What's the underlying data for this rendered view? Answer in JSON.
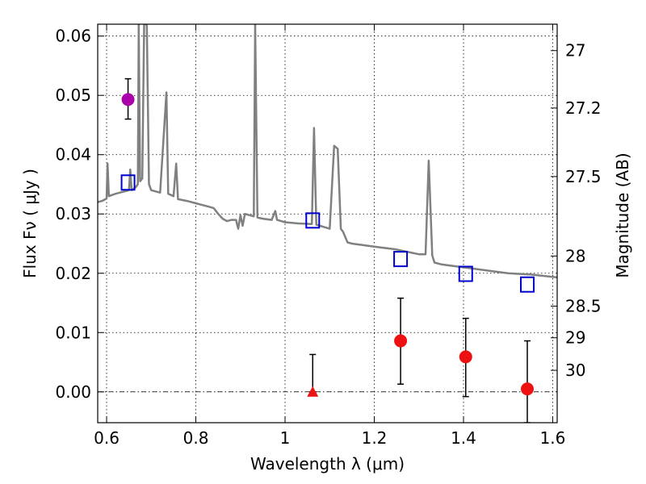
{
  "chart_data": {
    "type": "scatter",
    "title": "",
    "xlabel": "Wavelength  λ (μm)",
    "ylabel": "Flux  Fν  ( μJy )",
    "ylabel_right": "Magnitude (AB)",
    "xlim": [
      0.58,
      1.61
    ],
    "ylim": [
      -0.0052,
      0.062
    ],
    "grid": true,
    "x_ticks": [
      {
        "value": 0.6,
        "label": "0.6"
      },
      {
        "value": 0.8,
        "label": "0.8"
      },
      {
        "value": 1.0,
        "label": "1"
      },
      {
        "value": 1.2,
        "label": "1.2"
      },
      {
        "value": 1.4,
        "label": "1.4"
      },
      {
        "value": 1.6,
        "label": "1.6"
      }
    ],
    "y_ticks": [
      {
        "value": 0.0,
        "label": "0.00"
      },
      {
        "value": 0.01,
        "label": "0.01"
      },
      {
        "value": 0.02,
        "label": "0.02"
      },
      {
        "value": 0.03,
        "label": "0.03"
      },
      {
        "value": 0.04,
        "label": "0.04"
      },
      {
        "value": 0.05,
        "label": "0.05"
      },
      {
        "value": 0.06,
        "label": "0.06"
      }
    ],
    "mag_ticks": [
      {
        "value": 27,
        "label": "27"
      },
      {
        "value": 27.2,
        "label": "27.2"
      },
      {
        "value": 27.5,
        "label": "27.5"
      },
      {
        "value": 28,
        "label": "28"
      },
      {
        "value": 28.5,
        "label": "28.5"
      },
      {
        "value": 29,
        "label": "29"
      },
      {
        "value": 30,
        "label": "30"
      }
    ],
    "series": [
      {
        "marker": "line",
        "color": "#808080",
        "points": [
          [
            0.58,
            0.032
          ],
          [
            0.59,
            0.0322
          ],
          [
            0.6,
            0.0326
          ],
          [
            0.602,
            0.0385
          ],
          [
            0.605,
            0.033
          ],
          [
            0.62,
            0.0334
          ],
          [
            0.64,
            0.0338
          ],
          [
            0.65,
            0.034
          ],
          [
            0.653,
            0.0375
          ],
          [
            0.656,
            0.034
          ],
          [
            0.665,
            0.0345
          ],
          [
            0.67,
            0.035
          ],
          [
            0.672,
            0.062
          ],
          [
            0.675,
            0.0355
          ],
          [
            0.68,
            0.036
          ],
          [
            0.684,
            0.062
          ],
          [
            0.69,
            0.062
          ],
          [
            0.695,
            0.035
          ],
          [
            0.7,
            0.034
          ],
          [
            0.72,
            0.0336
          ],
          [
            0.734,
            0.0505
          ],
          [
            0.738,
            0.0334
          ],
          [
            0.75,
            0.033
          ],
          [
            0.756,
            0.0385
          ],
          [
            0.76,
            0.0325
          ],
          [
            0.78,
            0.0322
          ],
          [
            0.8,
            0.0318
          ],
          [
            0.82,
            0.0314
          ],
          [
            0.84,
            0.031
          ],
          [
            0.85,
            0.03
          ],
          [
            0.86,
            0.0292
          ],
          [
            0.87,
            0.0288
          ],
          [
            0.88,
            0.029
          ],
          [
            0.89,
            0.029
          ],
          [
            0.895,
            0.0275
          ],
          [
            0.9,
            0.0298
          ],
          [
            0.905,
            0.028
          ],
          [
            0.91,
            0.03
          ],
          [
            0.92,
            0.0298
          ],
          [
            0.93,
            0.0296
          ],
          [
            0.933,
            0.062
          ],
          [
            0.938,
            0.0294
          ],
          [
            0.95,
            0.0292
          ],
          [
            0.97,
            0.029
          ],
          [
            0.978,
            0.0305
          ],
          [
            0.982,
            0.029
          ],
          [
            1.0,
            0.0286
          ],
          [
            1.03,
            0.0284
          ],
          [
            1.06,
            0.0283
          ],
          [
            1.065,
            0.0445
          ],
          [
            1.07,
            0.0282
          ],
          [
            1.1,
            0.0275
          ],
          [
            1.11,
            0.0415
          ],
          [
            1.118,
            0.041
          ],
          [
            1.125,
            0.0275
          ],
          [
            1.13,
            0.027
          ],
          [
            1.14,
            0.0252
          ],
          [
            1.15,
            0.025
          ],
          [
            1.2,
            0.0245
          ],
          [
            1.25,
            0.024
          ],
          [
            1.3,
            0.0232
          ],
          [
            1.315,
            0.0232
          ],
          [
            1.322,
            0.039
          ],
          [
            1.33,
            0.023
          ],
          [
            1.335,
            0.0218
          ],
          [
            1.35,
            0.0215
          ],
          [
            1.4,
            0.021
          ],
          [
            1.45,
            0.0205
          ],
          [
            1.5,
            0.02
          ],
          [
            1.55,
            0.0198
          ],
          [
            1.6,
            0.0194
          ],
          [
            1.61,
            0.0193
          ]
        ]
      },
      {
        "marker": "square-open",
        "color": "#0000cc",
        "points": [
          [
            0.648,
            0.0353
          ],
          [
            1.062,
            0.0289
          ],
          [
            1.259,
            0.0224
          ],
          [
            1.405,
            0.0199
          ],
          [
            1.543,
            0.0181
          ]
        ]
      },
      {
        "marker": "circle",
        "color": "#aa00aa",
        "points": [
          {
            "x": 0.648,
            "y": 0.0493,
            "err_low": 0.046,
            "err_high": 0.0528
          }
        ]
      },
      {
        "marker": "circle",
        "color": "#ee1111",
        "points": [
          {
            "x": 1.259,
            "y": 0.0086,
            "err_low": 0.0013,
            "err_high": 0.0158
          },
          {
            "x": 1.405,
            "y": 0.0059,
            "err_low": -0.0008,
            "err_high": 0.0124
          },
          {
            "x": 1.543,
            "y": 0.0005,
            "err_low": -0.0052,
            "err_high": 0.0086
          }
        ]
      },
      {
        "marker": "triangle",
        "color": "#ee1111",
        "points": [
          {
            "x": 1.062,
            "y": 0.0,
            "err_low": 0.0,
            "err_high": 0.0063
          }
        ]
      }
    ]
  }
}
